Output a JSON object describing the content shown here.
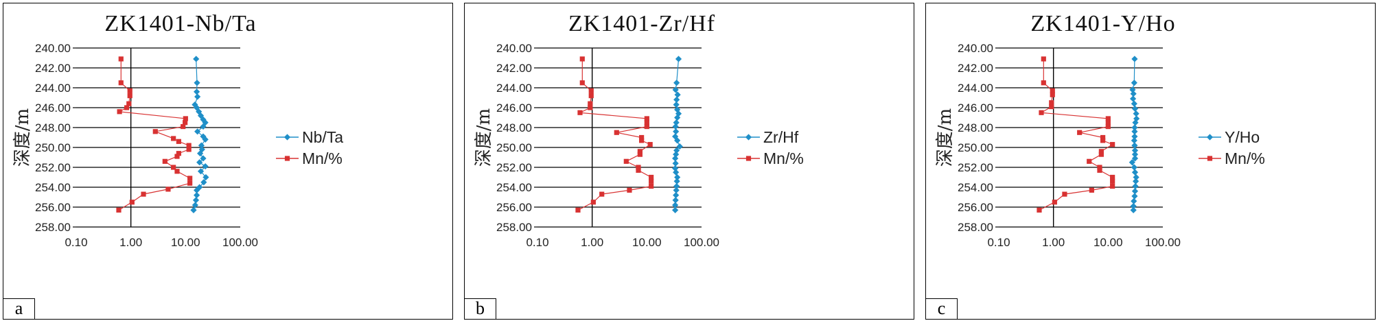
{
  "chart_data": [
    {
      "type": "scatter",
      "panel_label": "a",
      "title": "ZK1401-Nb/Ta",
      "xlabel": "",
      "ylabel": "深度/m",
      "x_scale": "log",
      "xlim": [
        0.1,
        100
      ],
      "ylim": [
        240,
        258
      ],
      "y_inverted": true,
      "x_ticks": [
        "0.10",
        "1.00",
        "10.00",
        "100.00"
      ],
      "y_ticks": [
        "240.00",
        "242.00",
        "244.00",
        "246.00",
        "248.00",
        "250.00",
        "252.00",
        "254.00",
        "256.00",
        "258.00"
      ],
      "grid": "horizontal",
      "legend_position": "right",
      "series": [
        {
          "name": "Nb/Ta",
          "color": "#1f8fc8",
          "marker": "diamond",
          "points": [
            {
              "y": 241.1,
              "x": 15.6
            },
            {
              "y": 243.5,
              "x": 16.2
            },
            {
              "y": 244.4,
              "x": 16.0
            },
            {
              "y": 244.9,
              "x": 16.5
            },
            {
              "y": 245.7,
              "x": 14.8
            },
            {
              "y": 246.0,
              "x": 16.0
            },
            {
              "y": 246.4,
              "x": 17.5
            },
            {
              "y": 246.8,
              "x": 19.0
            },
            {
              "y": 247.2,
              "x": 21.0
            },
            {
              "y": 247.5,
              "x": 23.0
            },
            {
              "y": 247.9,
              "x": 21.0
            },
            {
              "y": 248.4,
              "x": 16.5
            },
            {
              "y": 248.9,
              "x": 21.0
            },
            {
              "y": 249.2,
              "x": 23.0
            },
            {
              "y": 249.8,
              "x": 19.5
            },
            {
              "y": 250.2,
              "x": 20.0
            },
            {
              "y": 250.6,
              "x": 18.5
            },
            {
              "y": 251.1,
              "x": 21.0
            },
            {
              "y": 251.5,
              "x": 18.0
            },
            {
              "y": 251.9,
              "x": 23.0
            },
            {
              "y": 252.4,
              "x": 19.0
            },
            {
              "y": 253.0,
              "x": 23.5
            },
            {
              "y": 253.5,
              "x": 21.5
            },
            {
              "y": 254.0,
              "x": 18.0
            },
            {
              "y": 254.3,
              "x": 16.0
            },
            {
              "y": 254.8,
              "x": 16.0
            },
            {
              "y": 255.3,
              "x": 15.5
            },
            {
              "y": 255.8,
              "x": 15.0
            },
            {
              "y": 256.3,
              "x": 14.0
            }
          ]
        },
        {
          "name": "Mn/%",
          "color": "#d83232",
          "marker": "square",
          "points": [
            {
              "y": 241.1,
              "x": 0.66
            },
            {
              "y": 243.5,
              "x": 0.66
            },
            {
              "y": 244.3,
              "x": 0.96
            },
            {
              "y": 244.8,
              "x": 0.96
            },
            {
              "y": 245.6,
              "x": 0.92
            },
            {
              "y": 246.0,
              "x": 0.84
            },
            {
              "y": 246.4,
              "x": 0.62
            },
            {
              "y": 247.1,
              "x": 10.0
            },
            {
              "y": 247.5,
              "x": 9.8
            },
            {
              "y": 247.9,
              "x": 9.0
            },
            {
              "y": 248.4,
              "x": 2.8
            },
            {
              "y": 249.1,
              "x": 6.0
            },
            {
              "y": 249.4,
              "x": 7.5
            },
            {
              "y": 249.8,
              "x": 11.5
            },
            {
              "y": 250.2,
              "x": 11.5
            },
            {
              "y": 250.6,
              "x": 7.5
            },
            {
              "y": 250.9,
              "x": 7.0
            },
            {
              "y": 251.4,
              "x": 4.2
            },
            {
              "y": 252.0,
              "x": 6.0
            },
            {
              "y": 252.4,
              "x": 7.0
            },
            {
              "y": 253.1,
              "x": 12.0
            },
            {
              "y": 253.6,
              "x": 12.0
            },
            {
              "y": 254.2,
              "x": 4.8
            },
            {
              "y": 254.7,
              "x": 1.7
            },
            {
              "y": 255.5,
              "x": 1.05
            },
            {
              "y": 256.3,
              "x": 0.6
            }
          ]
        }
      ]
    },
    {
      "type": "scatter",
      "panel_label": "b",
      "title": "ZK1401-Zr/Hf",
      "xlabel": "",
      "ylabel": "深度/m",
      "x_scale": "log",
      "xlim": [
        0.1,
        100
      ],
      "ylim": [
        240,
        258
      ],
      "y_inverted": true,
      "x_ticks": [
        "0.10",
        "1.00",
        "10.00",
        "100.00"
      ],
      "y_ticks": [
        "240.00",
        "242.00",
        "244.00",
        "246.00",
        "248.00",
        "250.00",
        "252.00",
        "254.00",
        "256.00",
        "258.00"
      ],
      "grid": "horizontal",
      "legend_position": "right",
      "series": [
        {
          "name": "Zr/Hf",
          "color": "#1f8fc8",
          "marker": "diamond",
          "points": [
            {
              "y": 241.1,
              "x": 38.0
            },
            {
              "y": 243.5,
              "x": 35.0
            },
            {
              "y": 244.2,
              "x": 33.5
            },
            {
              "y": 244.7,
              "x": 36.5
            },
            {
              "y": 245.2,
              "x": 35.0
            },
            {
              "y": 245.7,
              "x": 34.5
            },
            {
              "y": 246.2,
              "x": 36.0
            },
            {
              "y": 246.6,
              "x": 38.0
            },
            {
              "y": 247.0,
              "x": 36.0
            },
            {
              "y": 247.5,
              "x": 34.5
            },
            {
              "y": 247.9,
              "x": 33.5
            },
            {
              "y": 248.4,
              "x": 34.0
            },
            {
              "y": 248.9,
              "x": 33.0
            },
            {
              "y": 249.3,
              "x": 36.0
            },
            {
              "y": 249.9,
              "x": 40.0
            },
            {
              "y": 250.3,
              "x": 35.0
            },
            {
              "y": 250.7,
              "x": 34.0
            },
            {
              "y": 251.1,
              "x": 33.0
            },
            {
              "y": 251.6,
              "x": 33.5
            },
            {
              "y": 252.1,
              "x": 33.0
            },
            {
              "y": 252.5,
              "x": 34.0
            },
            {
              "y": 253.0,
              "x": 36.0
            },
            {
              "y": 253.4,
              "x": 35.5
            },
            {
              "y": 253.9,
              "x": 35.0
            },
            {
              "y": 254.3,
              "x": 34.5
            },
            {
              "y": 254.8,
              "x": 34.0
            },
            {
              "y": 255.3,
              "x": 33.5
            },
            {
              "y": 255.8,
              "x": 33.0
            },
            {
              "y": 256.3,
              "x": 33.0
            }
          ]
        },
        {
          "name": "Mn/%",
          "color": "#d83232",
          "marker": "square",
          "points": [
            {
              "y": 241.1,
              "x": 0.66
            },
            {
              "y": 243.5,
              "x": 0.66
            },
            {
              "y": 244.3,
              "x": 0.96
            },
            {
              "y": 244.8,
              "x": 0.96
            },
            {
              "y": 245.6,
              "x": 0.92
            },
            {
              "y": 246.0,
              "x": 0.92
            },
            {
              "y": 246.5,
              "x": 0.6
            },
            {
              "y": 247.1,
              "x": 10.0
            },
            {
              "y": 247.5,
              "x": 10.0
            },
            {
              "y": 247.9,
              "x": 10.0
            },
            {
              "y": 248.5,
              "x": 2.8
            },
            {
              "y": 249.0,
              "x": 8.0
            },
            {
              "y": 249.3,
              "x": 8.0
            },
            {
              "y": 249.7,
              "x": 11.5
            },
            {
              "y": 250.4,
              "x": 7.5
            },
            {
              "y": 250.7,
              "x": 7.5
            },
            {
              "y": 251.4,
              "x": 4.2
            },
            {
              "y": 252.0,
              "x": 7.0
            },
            {
              "y": 252.3,
              "x": 7.0
            },
            {
              "y": 253.0,
              "x": 12.0
            },
            {
              "y": 253.4,
              "x": 12.0
            },
            {
              "y": 253.9,
              "x": 12.0
            },
            {
              "y": 254.3,
              "x": 4.8
            },
            {
              "y": 254.7,
              "x": 1.5
            },
            {
              "y": 255.5,
              "x": 1.05
            },
            {
              "y": 256.3,
              "x": 0.55
            }
          ]
        }
      ]
    },
    {
      "type": "scatter",
      "panel_label": "c",
      "title": "ZK1401-Y/Ho",
      "xlabel": "",
      "ylabel": "深度/m",
      "x_scale": "log",
      "xlim": [
        0.1,
        100
      ],
      "ylim": [
        240,
        258
      ],
      "y_inverted": true,
      "x_ticks": [
        "0.10",
        "1.00",
        "10.00",
        "100.00"
      ],
      "y_ticks": [
        "240.00",
        "242.00",
        "244.00",
        "246.00",
        "248.00",
        "250.00",
        "252.00",
        "254.00",
        "256.00",
        "258.00"
      ],
      "grid": "horizontal",
      "legend_position": "right",
      "series": [
        {
          "name": "Y/Ho",
          "color": "#1f8fc8",
          "marker": "diamond",
          "points": [
            {
              "y": 241.1,
              "x": 30.5
            },
            {
              "y": 243.5,
              "x": 30.0
            },
            {
              "y": 244.2,
              "x": 28.0
            },
            {
              "y": 244.6,
              "x": 29.0
            },
            {
              "y": 245.1,
              "x": 28.5
            },
            {
              "y": 245.6,
              "x": 30.0
            },
            {
              "y": 246.1,
              "x": 31.0
            },
            {
              "y": 246.6,
              "x": 32.5
            },
            {
              "y": 247.1,
              "x": 33.0
            },
            {
              "y": 247.5,
              "x": 31.5
            },
            {
              "y": 248.0,
              "x": 30.5
            },
            {
              "y": 248.4,
              "x": 30.5
            },
            {
              "y": 248.9,
              "x": 30.5
            },
            {
              "y": 249.3,
              "x": 30.0
            },
            {
              "y": 249.8,
              "x": 30.5
            },
            {
              "y": 250.3,
              "x": 31.0
            },
            {
              "y": 250.7,
              "x": 31.0
            },
            {
              "y": 251.1,
              "x": 31.0
            },
            {
              "y": 251.5,
              "x": 27.5
            },
            {
              "y": 252.0,
              "x": 30.0
            },
            {
              "y": 252.5,
              "x": 31.0
            },
            {
              "y": 253.0,
              "x": 32.5
            },
            {
              "y": 253.4,
              "x": 32.0
            },
            {
              "y": 253.9,
              "x": 31.5
            },
            {
              "y": 254.4,
              "x": 31.0
            },
            {
              "y": 254.9,
              "x": 30.5
            },
            {
              "y": 255.4,
              "x": 29.5
            },
            {
              "y": 255.9,
              "x": 29.0
            },
            {
              "y": 256.3,
              "x": 29.0
            }
          ]
        },
        {
          "name": "Mn/%",
          "color": "#d83232",
          "marker": "square",
          "points": [
            {
              "y": 241.1,
              "x": 0.66
            },
            {
              "y": 243.5,
              "x": 0.66
            },
            {
              "y": 244.3,
              "x": 0.96
            },
            {
              "y": 244.7,
              "x": 0.96
            },
            {
              "y": 245.5,
              "x": 0.92
            },
            {
              "y": 245.9,
              "x": 0.92
            },
            {
              "y": 246.5,
              "x": 0.6
            },
            {
              "y": 247.1,
              "x": 10.0
            },
            {
              "y": 247.5,
              "x": 10.0
            },
            {
              "y": 247.9,
              "x": 10.0
            },
            {
              "y": 248.5,
              "x": 3.0
            },
            {
              "y": 249.0,
              "x": 8.0
            },
            {
              "y": 249.3,
              "x": 8.0
            },
            {
              "y": 249.7,
              "x": 12.0
            },
            {
              "y": 250.4,
              "x": 7.5
            },
            {
              "y": 250.7,
              "x": 7.5
            },
            {
              "y": 251.4,
              "x": 4.5
            },
            {
              "y": 252.0,
              "x": 7.0
            },
            {
              "y": 252.3,
              "x": 7.0
            },
            {
              "y": 253.0,
              "x": 12.0
            },
            {
              "y": 253.4,
              "x": 12.0
            },
            {
              "y": 253.9,
              "x": 12.0
            },
            {
              "y": 254.3,
              "x": 5.0
            },
            {
              "y": 254.7,
              "x": 1.6
            },
            {
              "y": 255.5,
              "x": 1.05
            },
            {
              "y": 256.3,
              "x": 0.55
            }
          ]
        }
      ]
    }
  ]
}
